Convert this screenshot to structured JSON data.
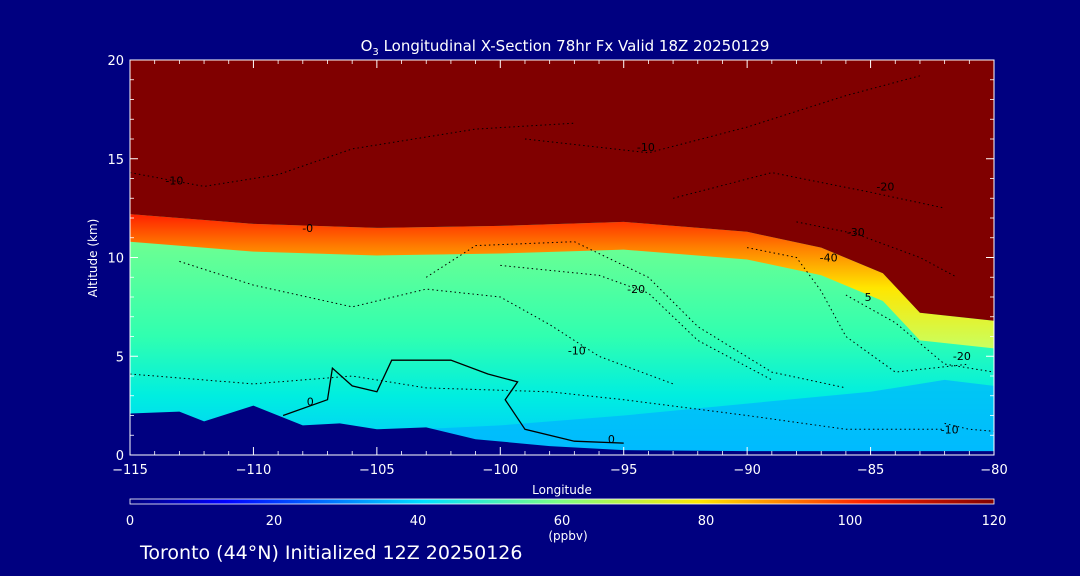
{
  "chart_data": {
    "type": "heatmap",
    "title_prefix": "O",
    "title_sub": "3",
    "title_rest": " Longitudinal X-Section 78hr  Fx Valid 18Z 20250129",
    "xlabel": "Longitude",
    "ylabel": "Altitude (km)",
    "xlim": [
      -115,
      -80
    ],
    "ylim": [
      0,
      20
    ],
    "x_ticks": [
      -115,
      -110,
      -105,
      -100,
      -95,
      -90,
      -85,
      -80
    ],
    "x_tick_labels": [
      "−115",
      "−110",
      "−105",
      "−100",
      "−95",
      "−90",
      "−85",
      "−80"
    ],
    "y_ticks": [
      0,
      5,
      10,
      15,
      20
    ],
    "y_tick_labels": [
      "0",
      "5",
      "10",
      "15",
      "20"
    ],
    "colorbar": {
      "label": "(ppbv)",
      "range": [
        0,
        120
      ],
      "ticks": [
        0,
        20,
        40,
        60,
        80,
        100,
        120
      ],
      "tick_labels": [
        "0",
        "20",
        "40",
        "60",
        "80",
        "100",
        "120"
      ]
    },
    "tropopause_height": [
      {
        "lon": -115,
        "alt": 12.2
      },
      {
        "lon": -110,
        "alt": 11.7
      },
      {
        "lon": -105,
        "alt": 11.5
      },
      {
        "lon": -100,
        "alt": 11.6
      },
      {
        "lon": -95,
        "alt": 11.8
      },
      {
        "lon": -90,
        "alt": 11.3
      },
      {
        "lon": -87,
        "alt": 10.5
      },
      {
        "lon": -84.5,
        "alt": 9.2
      },
      {
        "lon": -83,
        "alt": 7.2
      },
      {
        "lon": -80,
        "alt": 6.8
      }
    ],
    "terrain_height": [
      {
        "lon": -115,
        "alt": 2.1
      },
      {
        "lon": -113,
        "alt": 2.2
      },
      {
        "lon": -112,
        "alt": 1.7
      },
      {
        "lon": -110,
        "alt": 2.5
      },
      {
        "lon": -108,
        "alt": 1.5
      },
      {
        "lon": -106.5,
        "alt": 1.6
      },
      {
        "lon": -105,
        "alt": 1.3
      },
      {
        "lon": -103,
        "alt": 1.4
      },
      {
        "lon": -101,
        "alt": 0.8
      },
      {
        "lon": -98,
        "alt": 0.45
      },
      {
        "lon": -95,
        "alt": 0.25
      },
      {
        "lon": -90,
        "alt": 0.2
      },
      {
        "lon": -85,
        "alt": 0.2
      },
      {
        "lon": -80,
        "alt": 0.2
      }
    ],
    "contour_labels": [
      {
        "text": "-10",
        "lon": -113.2,
        "alt": 13.7
      },
      {
        "text": "-0",
        "lon": -107.8,
        "alt": 11.3
      },
      {
        "text": "-10",
        "lon": -94.1,
        "alt": 15.4
      },
      {
        "text": "-20",
        "lon": -84.4,
        "alt": 13.4
      },
      {
        "text": "-30",
        "lon": -85.6,
        "alt": 11.1
      },
      {
        "text": "-40",
        "lon": -86.7,
        "alt": 9.8
      },
      {
        "text": "-20",
        "lon": -94.5,
        "alt": 8.2
      },
      {
        "text": "-10",
        "lon": -96.9,
        "alt": 5.1
      },
      {
        "text": "0",
        "lon": -107.7,
        "alt": 2.5
      },
      {
        "text": "0",
        "lon": -95.5,
        "alt": 0.6
      },
      {
        "text": "-20",
        "lon": -81.3,
        "alt": 4.8
      },
      {
        "text": "-10",
        "lon": -81.8,
        "alt": 1.1
      },
      {
        "text": "5",
        "lon": -85.1,
        "alt": 7.8
      }
    ]
  },
  "footer": "Toronto (44°N) Initialized 12Z 20250126"
}
